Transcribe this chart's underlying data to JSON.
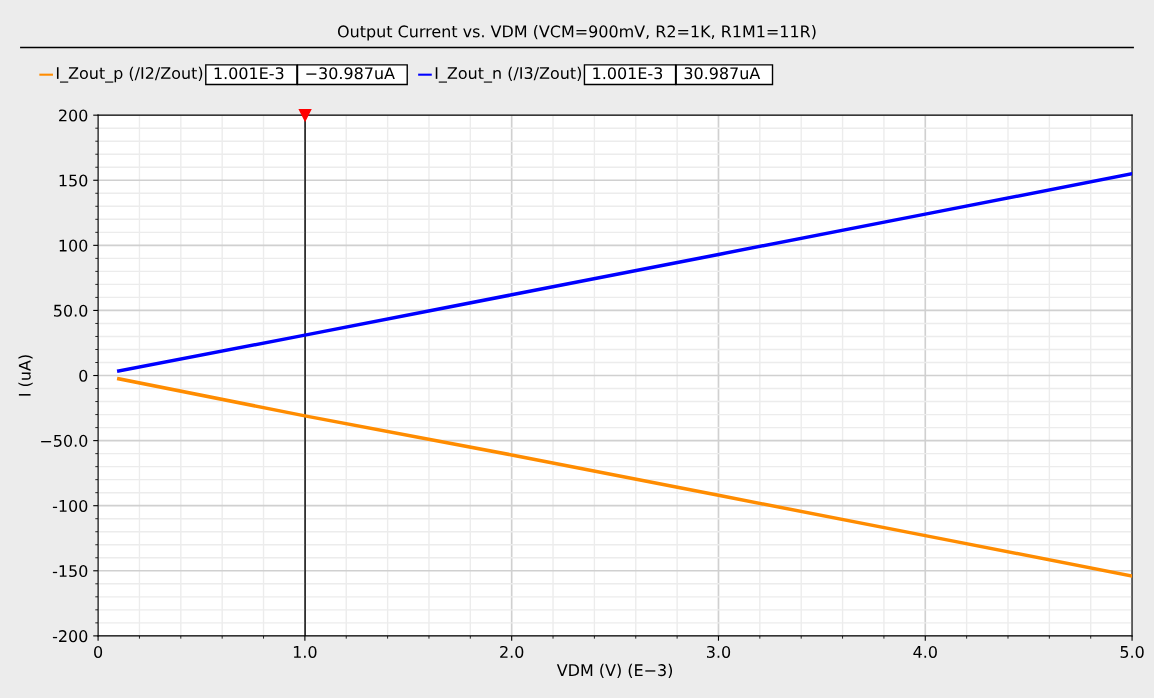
{
  "chart_data": {
    "type": "line",
    "title": "Output Current vs. VDM (VCM=900mV, R2=1K, R1M1=11R)",
    "xlabel": "VDM (V) (E−3)",
    "ylabel": "I (uA)",
    "series": [
      {
        "name": "I_Zout_p (/I2/Zout)",
        "color": "#ff8c00",
        "x": [
          0.1,
          1.0,
          2.0,
          3.0,
          4.0,
          5.0
        ],
        "values": [
          -2.5,
          -31,
          -61,
          -92,
          -123,
          -154
        ]
      },
      {
        "name": "I_Zout_n (/I3/Zout)",
        "color": "#0000ff",
        "x": [
          0.1,
          1.0,
          2.0,
          3.0,
          4.0,
          5.0
        ],
        "values": [
          3.5,
          31,
          62,
          93,
          124,
          155
        ]
      }
    ],
    "annotations": [
      "1.001E-3",
      "−30.987uA",
      "1.001E-3",
      "30.987uA"
    ],
    "ref_lines": [
      {
        "axis": "x",
        "value": 1.001,
        "color": "#000000",
        "line_style": "solid"
      }
    ],
    "xlim": [
      0,
      5.0
    ],
    "xticks": [
      0,
      {
        "value": 1.0,
        "label": "1.0"
      },
      {
        "value": 2.0,
        "label": "2.0"
      },
      {
        "value": 3.0,
        "label": "3.0"
      },
      {
        "value": 4.0,
        "label": "4.0"
      },
      {
        "value": 5.0,
        "label": "5.0"
      }
    ],
    "ylim": [
      -200,
      200
    ],
    "yticks": [
      -200,
      -150,
      -100,
      {
        "value": -50,
        "label": "−50.0"
      },
      0,
      {
        "value": 50,
        "label": "50.0"
      },
      100,
      150,
      200
    ],
    "grid": true,
    "legend": "top left",
    "marker": "none",
    "line_style": "solid"
  }
}
